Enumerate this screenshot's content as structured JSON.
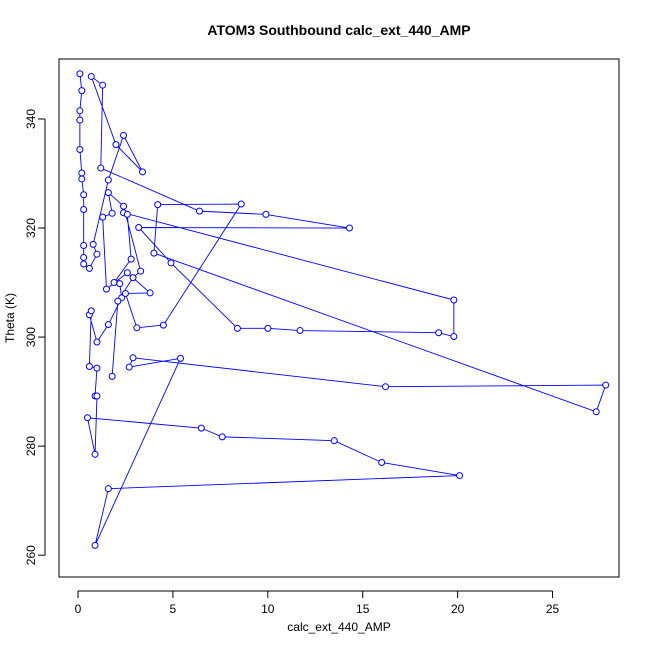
{
  "chart_data": {
    "type": "line",
    "title": "ATOM3 Southbound calc_ext_440_AMP",
    "xlabel": "calc_ext_440_AMP",
    "ylabel": "Theta (K)",
    "xlim": [
      -1,
      28.5
    ],
    "ylim": [
      256,
      351
    ],
    "xticks": [
      0,
      5,
      10,
      15,
      20,
      25
    ],
    "yticks": [
      260,
      280,
      300,
      320,
      340
    ],
    "series_color": "#0000ff",
    "marker": "open-circle",
    "grid": false,
    "series": [
      {
        "values": [
          [
            0.1,
            348.3
          ],
          [
            0.2,
            345.2
          ],
          [
            0.1,
            341.5
          ],
          [
            0.1,
            339.8
          ],
          [
            0.1,
            334.4
          ],
          [
            0.2,
            330.1
          ],
          [
            0.2,
            329.0
          ],
          [
            0.3,
            326.1
          ],
          [
            0.3,
            323.4
          ],
          [
            0.3,
            316.8
          ],
          [
            0.3,
            314.6
          ],
          [
            0.3,
            313.4
          ],
          [
            0.6,
            312.6
          ],
          [
            1.0,
            315.2
          ],
          [
            0.8,
            317.0
          ],
          [
            1.6,
            328.8
          ],
          [
            2.4,
            337.0
          ],
          [
            3.4,
            330.3
          ],
          [
            2.0,
            335.3
          ],
          [
            0.7,
            347.8
          ],
          [
            1.3,
            346.2
          ],
          [
            1.2,
            331.0
          ],
          [
            6.4,
            323.1
          ],
          [
            9.9,
            322.5
          ],
          [
            14.3,
            320.0
          ],
          [
            3.2,
            320.1
          ],
          [
            4.9,
            313.6
          ],
          [
            8.4,
            301.6
          ],
          [
            10.0,
            301.6
          ],
          [
            11.7,
            301.2
          ],
          [
            19.0,
            300.8
          ],
          [
            19.8,
            300.1
          ],
          [
            19.8,
            306.8
          ],
          [
            2.4,
            322.8
          ],
          [
            2.6,
            322.5
          ],
          [
            2.8,
            314.3
          ],
          [
            1.9,
            310.0
          ],
          [
            2.2,
            309.8
          ],
          [
            2.3,
            307.2
          ],
          [
            1.6,
            302.3
          ],
          [
            1.0,
            299.1
          ],
          [
            0.6,
            304.1
          ],
          [
            0.7,
            304.8
          ],
          [
            0.6,
            294.6
          ],
          [
            1.0,
            294.3
          ],
          [
            0.9,
            289.2
          ],
          [
            1.0,
            289.2
          ],
          [
            0.9,
            278.5
          ],
          [
            0.5,
            285.2
          ],
          [
            6.5,
            283.3
          ],
          [
            7.6,
            281.7
          ],
          [
            13.5,
            281.0
          ],
          [
            16.0,
            277.0
          ],
          [
            20.1,
            274.6
          ],
          [
            1.6,
            272.2
          ],
          [
            0.9,
            261.8
          ],
          [
            5.4,
            296.1
          ],
          [
            2.7,
            294.5
          ],
          [
            2.9,
            296.2
          ],
          [
            16.2,
            290.9
          ],
          [
            27.8,
            291.2
          ],
          [
            27.3,
            286.3
          ],
          [
            4.0,
            315.4
          ],
          [
            4.2,
            324.3
          ],
          [
            8.6,
            324.4
          ],
          [
            4.5,
            302.2
          ],
          [
            3.1,
            301.7
          ],
          [
            2.5,
            308.0
          ],
          [
            3.8,
            308.1
          ],
          [
            2.6,
            311.8
          ],
          [
            1.5,
            308.8
          ],
          [
            1.3,
            322.0
          ],
          [
            1.8,
            322.7
          ],
          [
            1.6,
            326.5
          ],
          [
            2.4,
            324.0
          ],
          [
            3.3,
            312.1
          ],
          [
            2.9,
            310.9
          ],
          [
            2.1,
            306.6
          ],
          [
            1.8,
            292.8
          ]
        ]
      }
    ]
  }
}
